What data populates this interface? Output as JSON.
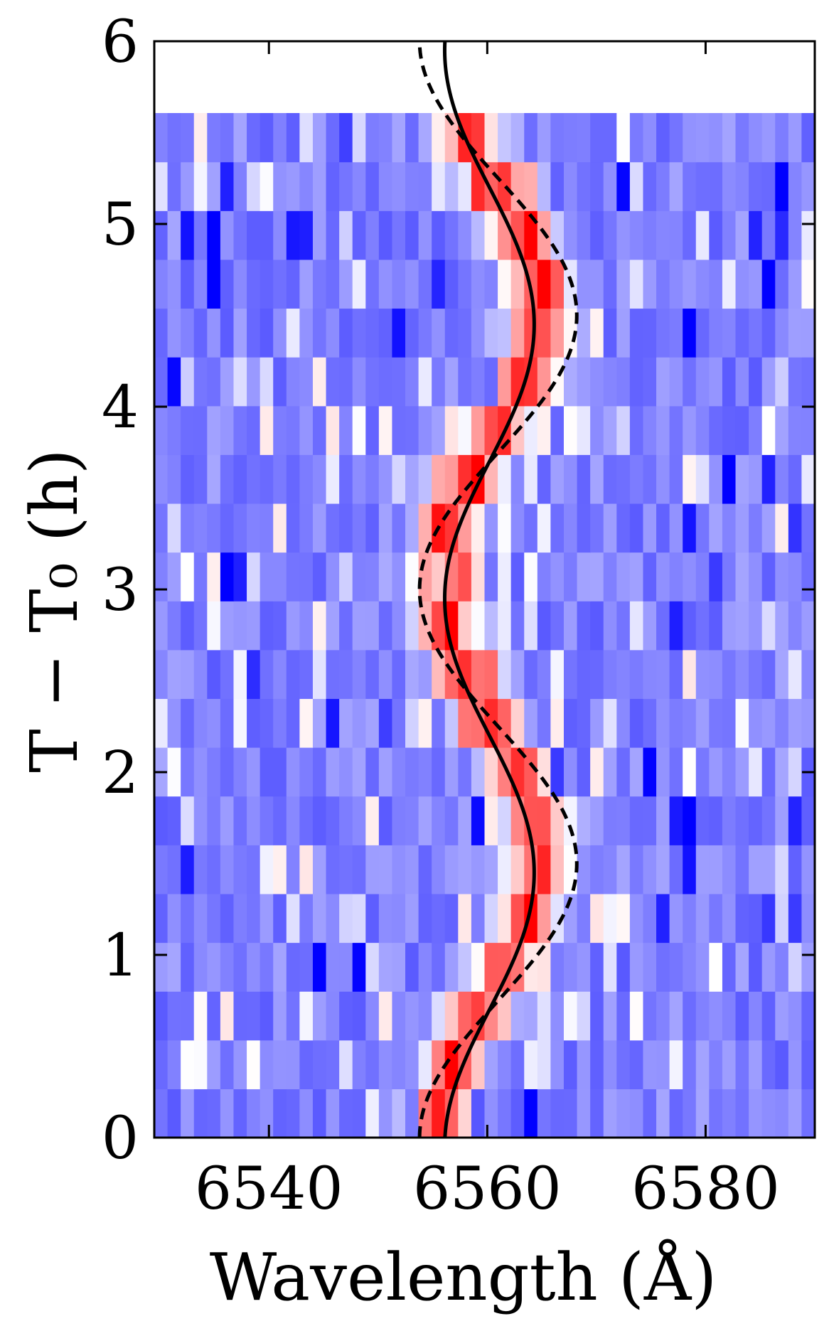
{
  "chart_data": {
    "type": "heatmap",
    "xlabel": "Wavelength (Å)",
    "ylabel": "T − T₀ (h)",
    "xlim": [
      6529.5,
      6590
    ],
    "ylim": [
      0,
      6
    ],
    "xticks": [
      6540,
      6560,
      6580
    ],
    "yticks": [
      0,
      1,
      2,
      3,
      4,
      5,
      6
    ],
    "x_tick_labels": [
      "6540",
      "6560",
      "6580"
    ],
    "y_tick_labels": [
      "0",
      "1",
      "2",
      "3",
      "4",
      "5",
      "6"
    ],
    "ticks_direction": "in",
    "grid": false,
    "legend": "none",
    "colormap": "bwr",
    "colors": {
      "low": "#0000ff",
      "mid": "#ffffff",
      "high": "#ff0000"
    },
    "heatmap_grid": {
      "x_min": 6529.5,
      "x_max": 6590,
      "n_columns": 50,
      "row_height_h": 0.267,
      "n_rows": 21,
      "row_time_start_h": 0.3
    },
    "series": [
      {
        "style": "solid",
        "color": "#000000",
        "center_wavelength": 6560.2,
        "amplitude_A": 4.1,
        "period_h": 3.0,
        "phase_h": 0.7
      },
      {
        "style": "dashed",
        "color": "#000000",
        "center_wavelength": 6561.0,
        "amplitude_A": 7.2,
        "period_h": 3.0,
        "phase_h": 0.75
      }
    ],
    "emission_feature": {
      "description_values": {
        "center_wavelength": 6560.2,
        "amplitude_A": 4.6,
        "period_h": 3.0,
        "phase_h": 0.78
      }
    }
  }
}
